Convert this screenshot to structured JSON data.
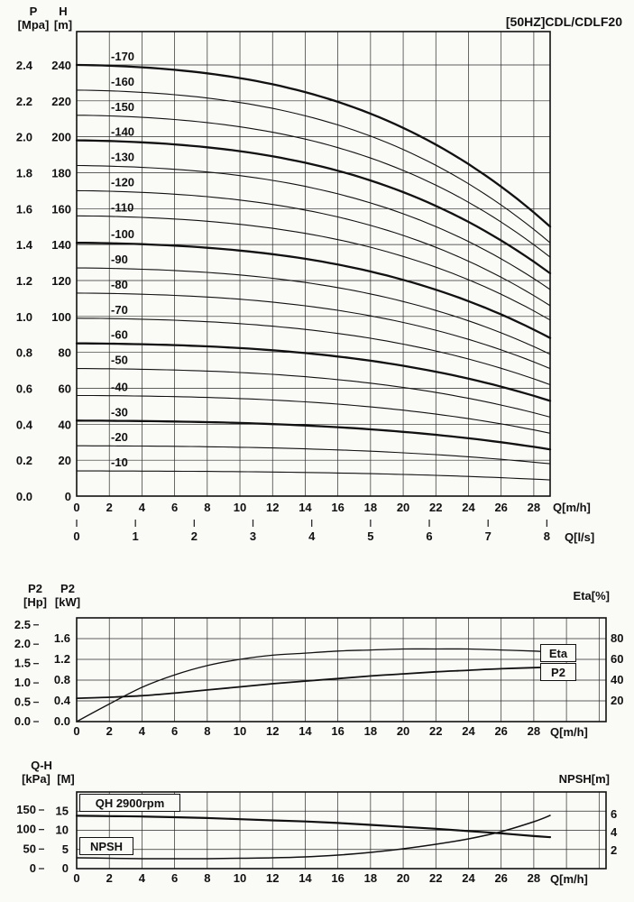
{
  "title": "[50HZ]CDL/CDLF20",
  "axis_titles": {
    "p_line1": "P",
    "p_line2": "[Mpa]",
    "h_line1": "H",
    "h_line2": "[m]",
    "q_mh": "Q[m/h]",
    "q_ls": "Q[l/s]",
    "p2hp_line1": "P2",
    "p2hp_line2": "[Hp]",
    "p2kw_line1": "P2",
    "p2kw_line2": "[kW]",
    "eta": "Eta[%]",
    "qh_line1": "Q-H",
    "kpa": "[kPa]",
    "m": "[M]",
    "npsh": "NPSH[m]"
  },
  "chart_data": [
    {
      "type": "line",
      "name": "head-capacity-curves",
      "title": "[50HZ]CDL/CDLF20",
      "xlabel": "Q[m/h]",
      "x2label": "Q[l/s]",
      "ylabel_left1": "P [Mpa]",
      "ylabel_left2": "H [m]",
      "x_max": 29,
      "x_ticks": [
        0,
        2,
        4,
        6,
        8,
        10,
        12,
        14,
        16,
        18,
        20,
        22,
        24,
        26,
        28
      ],
      "x2_ticks": [
        0,
        1,
        2,
        3,
        4,
        5,
        6,
        7,
        8
      ],
      "x2_to_x_factor": 3.6,
      "h_ticks": [
        0,
        20,
        40,
        60,
        80,
        100,
        120,
        140,
        160,
        180,
        200,
        220,
        240
      ],
      "p_ticks": [
        "0.0",
        "0.2",
        "0.4",
        "0.6",
        "0.8",
        "1.0",
        "1.2",
        "1.4",
        "1.6",
        "1.8",
        "2.0",
        "2.2",
        "2.4"
      ],
      "series": [
        {
          "label": "-170",
          "h0": 240,
          "h_end": 150,
          "bold": true
        },
        {
          "label": "-160",
          "h0": 226,
          "h_end": 141,
          "bold": false
        },
        {
          "label": "-150",
          "h0": 212,
          "h_end": 133,
          "bold": false
        },
        {
          "label": "-140",
          "h0": 198,
          "h_end": 124,
          "bold": true
        },
        {
          "label": "-130",
          "h0": 184,
          "h_end": 115,
          "bold": false
        },
        {
          "label": "-120",
          "h0": 170,
          "h_end": 106,
          "bold": false
        },
        {
          "label": "-110",
          "h0": 156,
          "h_end": 98,
          "bold": false
        },
        {
          "label": "-100",
          "h0": 141,
          "h_end": 88,
          "bold": true
        },
        {
          "label": "-90",
          "h0": 127,
          "h_end": 79,
          "bold": false
        },
        {
          "label": "-80",
          "h0": 113,
          "h_end": 71,
          "bold": false
        },
        {
          "label": "-70",
          "h0": 99,
          "h_end": 62,
          "bold": false
        },
        {
          "label": "-60",
          "h0": 85,
          "h_end": 53,
          "bold": true
        },
        {
          "label": "-50",
          "h0": 71,
          "h_end": 44,
          "bold": false
        },
        {
          "label": "-40",
          "h0": 56,
          "h_end": 35,
          "bold": false
        },
        {
          "label": "-30",
          "h0": 42,
          "h_end": 26,
          "bold": true
        },
        {
          "label": "-20",
          "h0": 28,
          "h_end": 18,
          "bold": false
        },
        {
          "label": "-10",
          "h0": 14,
          "h_end": 9,
          "bold": false
        }
      ]
    },
    {
      "type": "line",
      "name": "power-and-efficiency",
      "xlabel": "Q[m/h]",
      "x_ticks": [
        0,
        2,
        4,
        6,
        8,
        10,
        12,
        14,
        16,
        18,
        20,
        22,
        24,
        26,
        28
      ],
      "hp_ticks": [
        "0.0",
        "0.5",
        "1.0",
        "1.5",
        "2.0",
        "2.5"
      ],
      "kw_ticks": [
        "0.0",
        "0.4",
        "0.8",
        "1.2",
        "1.6"
      ],
      "eta_ticks": [
        20,
        40,
        60,
        80
      ],
      "eta_axis_label": "Eta[%]",
      "legend": [
        "Eta",
        "P2"
      ],
      "series": [
        {
          "name": "Eta",
          "axis": "eta",
          "x": [
            0,
            2,
            4,
            6,
            8,
            10,
            12,
            14,
            16,
            18,
            20,
            22,
            24,
            26,
            28,
            29
          ],
          "y": [
            0,
            17,
            33,
            45,
            54,
            60,
            64,
            66,
            68,
            69,
            70,
            70,
            70,
            69,
            68,
            67
          ]
        },
        {
          "name": "P2",
          "axis": "kw",
          "x": [
            0,
            2,
            4,
            6,
            8,
            10,
            12,
            14,
            16,
            18,
            20,
            22,
            24,
            26,
            28,
            29
          ],
          "y": [
            0.45,
            0.47,
            0.5,
            0.55,
            0.61,
            0.67,
            0.73,
            0.78,
            0.83,
            0.88,
            0.92,
            0.96,
            0.99,
            1.02,
            1.04,
            1.05
          ]
        }
      ]
    },
    {
      "type": "line",
      "name": "qh-and-npsh",
      "xlabel": "Q[m/h]",
      "x_ticks": [
        0,
        2,
        4,
        6,
        8,
        10,
        12,
        14,
        16,
        18,
        20,
        22,
        24,
        26,
        28
      ],
      "kpa_ticks": [
        150,
        100,
        50,
        0
      ],
      "m_ticks": [
        15,
        10,
        5,
        0
      ],
      "npsh_ticks": [
        6,
        4,
        2
      ],
      "npsh_axis_label": "NPSH[m]",
      "legend": [
        "QH 2900rpm",
        "NPSH"
      ],
      "series": [
        {
          "name": "QH 2900rpm",
          "axis": "m",
          "x": [
            0,
            2,
            4,
            6,
            8,
            10,
            12,
            14,
            16,
            18,
            20,
            22,
            24,
            26,
            28,
            29
          ],
          "y": [
            13.8,
            13.7,
            13.6,
            13.4,
            13.2,
            12.9,
            12.6,
            12.3,
            11.9,
            11.4,
            10.9,
            10.4,
            9.8,
            9.2,
            8.5,
            8.2
          ]
        },
        {
          "name": "NPSH",
          "axis": "npsh",
          "x": [
            0,
            2,
            4,
            6,
            8,
            10,
            12,
            14,
            16,
            18,
            20,
            22,
            24,
            26,
            28,
            29
          ],
          "y": [
            1.2,
            1.15,
            1.1,
            1.1,
            1.1,
            1.15,
            1.2,
            1.3,
            1.5,
            1.8,
            2.2,
            2.7,
            3.3,
            4.1,
            5.2,
            5.9
          ]
        }
      ]
    }
  ]
}
